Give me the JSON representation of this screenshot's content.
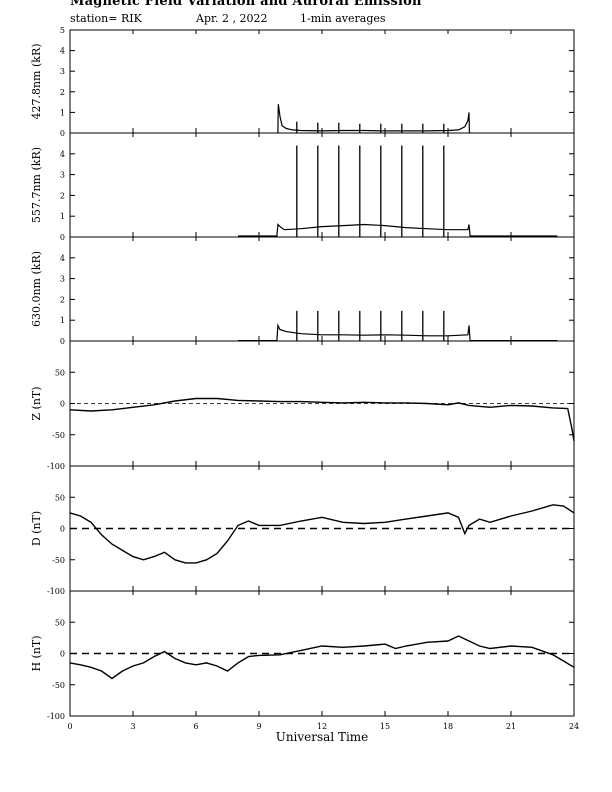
{
  "header": {
    "title": "Magnetic Field Variation and Auroral Emission",
    "station": "station= RIK",
    "date": "Apr. 2  , 2022",
    "averaging": "1-min averages"
  },
  "chart_data": [
    {
      "type": "line",
      "ylabel": "427.8nm (kR)",
      "ylim": [
        0,
        5
      ],
      "yticks": [
        0,
        1,
        2,
        3,
        4,
        5
      ],
      "xlim": [
        0,
        24
      ],
      "series": [
        {
          "values": [
            [
              9.9,
              0
            ],
            [
              9.92,
              1.4
            ],
            [
              10.0,
              0.8
            ],
            [
              10.1,
              0.35
            ],
            [
              10.3,
              0.22
            ],
            [
              10.6,
              0.15
            ],
            [
              11,
              0.12
            ],
            [
              12,
              0.1
            ],
            [
              13,
              0.12
            ],
            [
              14,
              0.12
            ],
            [
              15,
              0.1
            ],
            [
              16,
              0.1
            ],
            [
              17,
              0.1
            ],
            [
              18,
              0.12
            ],
            [
              18.5,
              0.15
            ],
            [
              18.8,
              0.3
            ],
            [
              18.95,
              0.6
            ],
            [
              19.0,
              1.0
            ],
            [
              19.02,
              0
            ]
          ]
        }
      ],
      "spikes": [
        [
          10.8,
          0.55
        ],
        [
          11.8,
          0.5
        ],
        [
          12.8,
          0.5
        ],
        [
          13.8,
          0.45
        ],
        [
          14.8,
          0.45
        ],
        [
          15.8,
          0.45
        ],
        [
          16.8,
          0.45
        ],
        [
          17.8,
          0.45
        ]
      ]
    },
    {
      "type": "line",
      "ylabel": "557.7nm (kR)",
      "ylim": [
        0,
        5
      ],
      "yticks": [
        0,
        1,
        2,
        3,
        4
      ],
      "xlim": [
        0,
        24
      ],
      "series": [
        {
          "values": [
            [
              8.0,
              0.05
            ],
            [
              9.85,
              0.05
            ],
            [
              9.9,
              0.6
            ],
            [
              10.0,
              0.5
            ],
            [
              10.2,
              0.35
            ],
            [
              11,
              0.4
            ],
            [
              12,
              0.5
            ],
            [
              13,
              0.55
            ],
            [
              14,
              0.6
            ],
            [
              15,
              0.55
            ],
            [
              16,
              0.45
            ],
            [
              17,
              0.4
            ],
            [
              18,
              0.35
            ],
            [
              18.95,
              0.35
            ],
            [
              19.0,
              0.6
            ],
            [
              19.05,
              0.05
            ],
            [
              23.2,
              0.05
            ]
          ]
        }
      ],
      "spikes": [
        [
          10.8,
          4.4
        ],
        [
          11.8,
          4.4
        ],
        [
          12.8,
          4.4
        ],
        [
          13.8,
          4.4
        ],
        [
          14.8,
          4.4
        ],
        [
          15.8,
          4.4
        ],
        [
          16.8,
          4.4
        ],
        [
          17.8,
          4.4
        ]
      ]
    },
    {
      "type": "line",
      "ylabel": "630.0nm (kR)",
      "ylim": [
        0,
        5
      ],
      "yticks": [
        0,
        1,
        2,
        3,
        4
      ],
      "xlim": [
        0,
        24
      ],
      "series": [
        {
          "values": [
            [
              8.0,
              0.02
            ],
            [
              9.85,
              0.02
            ],
            [
              9.9,
              0.75
            ],
            [
              10.0,
              0.55
            ],
            [
              10.3,
              0.45
            ],
            [
              11,
              0.35
            ],
            [
              12,
              0.3
            ],
            [
              13,
              0.3
            ],
            [
              14,
              0.28
            ],
            [
              15,
              0.3
            ],
            [
              16,
              0.28
            ],
            [
              17,
              0.25
            ],
            [
              18,
              0.25
            ],
            [
              18.95,
              0.3
            ],
            [
              19.0,
              0.75
            ],
            [
              19.05,
              0.02
            ],
            [
              23.2,
              0.02
            ]
          ]
        }
      ],
      "spikes": [
        [
          10.8,
          1.45
        ],
        [
          11.8,
          1.45
        ],
        [
          12.8,
          1.45
        ],
        [
          13.8,
          1.45
        ],
        [
          14.8,
          1.45
        ],
        [
          15.8,
          1.45
        ],
        [
          16.8,
          1.45
        ],
        [
          17.8,
          1.45
        ]
      ]
    },
    {
      "type": "line",
      "ylabel": "Z (nT)",
      "ylim": [
        -100,
        100
      ],
      "yticks": [
        -100,
        -50,
        0,
        50
      ],
      "xlim": [
        0,
        24
      ],
      "zero_line": true,
      "series": [
        {
          "values": [
            [
              0,
              -10
            ],
            [
              1,
              -12
            ],
            [
              2,
              -10
            ],
            [
              3,
              -6
            ],
            [
              4,
              -2
            ],
            [
              5,
              4
            ],
            [
              6,
              8
            ],
            [
              7,
              8
            ],
            [
              8,
              5
            ],
            [
              9,
              4
            ],
            [
              10,
              3
            ],
            [
              11,
              3
            ],
            [
              12,
              2
            ],
            [
              13,
              1
            ],
            [
              14,
              2
            ],
            [
              15,
              1
            ],
            [
              16,
              1
            ],
            [
              17,
              0
            ],
            [
              18,
              -2
            ],
            [
              18.5,
              1
            ],
            [
              19,
              -3
            ],
            [
              20,
              -6
            ],
            [
              21,
              -3
            ],
            [
              22,
              -4
            ],
            [
              23,
              -7
            ],
            [
              23.7,
              -8
            ],
            [
              23.9,
              -40
            ],
            [
              24,
              -60
            ]
          ]
        }
      ]
    },
    {
      "type": "line",
      "ylabel": "D (nT)",
      "ylim": [
        -100,
        100
      ],
      "yticks": [
        -100,
        -50,
        0,
        50
      ],
      "xlim": [
        0,
        24
      ],
      "zero_line": true,
      "series": [
        {
          "values": [
            [
              0,
              25
            ],
            [
              0.5,
              20
            ],
            [
              1,
              10
            ],
            [
              1.5,
              -10
            ],
            [
              2,
              -25
            ],
            [
              2.5,
              -35
            ],
            [
              3,
              -45
            ],
            [
              3.5,
              -50
            ],
            [
              4,
              -45
            ],
            [
              4.5,
              -38
            ],
            [
              5,
              -50
            ],
            [
              5.5,
              -55
            ],
            [
              6,
              -55
            ],
            [
              6.5,
              -50
            ],
            [
              7,
              -40
            ],
            [
              7.5,
              -20
            ],
            [
              8,
              5
            ],
            [
              8.5,
              12
            ],
            [
              9,
              5
            ],
            [
              10,
              5
            ],
            [
              11,
              12
            ],
            [
              12,
              18
            ],
            [
              13,
              10
            ],
            [
              14,
              8
            ],
            [
              15,
              10
            ],
            [
              16,
              15
            ],
            [
              17,
              20
            ],
            [
              18,
              25
            ],
            [
              18.5,
              18
            ],
            [
              18.8,
              -8
            ],
            [
              19,
              5
            ],
            [
              19.5,
              15
            ],
            [
              20,
              10
            ],
            [
              21,
              20
            ],
            [
              22,
              28
            ],
            [
              23,
              38
            ],
            [
              23.5,
              36
            ],
            [
              24,
              25
            ]
          ]
        }
      ]
    },
    {
      "type": "line",
      "ylabel": "H (nT)",
      "ylim": [
        -100,
        100
      ],
      "yticks": [
        -100,
        -50,
        0,
        50
      ],
      "xlim": [
        0,
        24
      ],
      "zero_line": true,
      "series": [
        {
          "values": [
            [
              0,
              -15
            ],
            [
              0.5,
              -18
            ],
            [
              1,
              -22
            ],
            [
              1.5,
              -28
            ],
            [
              2,
              -40
            ],
            [
              2.5,
              -28
            ],
            [
              3,
              -20
            ],
            [
              3.5,
              -15
            ],
            [
              4,
              -5
            ],
            [
              4.5,
              3
            ],
            [
              5,
              -8
            ],
            [
              5.5,
              -15
            ],
            [
              6,
              -18
            ],
            [
              6.5,
              -15
            ],
            [
              7,
              -20
            ],
            [
              7.5,
              -28
            ],
            [
              8,
              -15
            ],
            [
              8.5,
              -5
            ],
            [
              9,
              -3
            ],
            [
              10,
              -2
            ],
            [
              11,
              5
            ],
            [
              12,
              12
            ],
            [
              13,
              10
            ],
            [
              14,
              12
            ],
            [
              15,
              15
            ],
            [
              15.5,
              8
            ],
            [
              16,
              12
            ],
            [
              17,
              18
            ],
            [
              18,
              20
            ],
            [
              18.5,
              28
            ],
            [
              19,
              20
            ],
            [
              19.5,
              12
            ],
            [
              20,
              8
            ],
            [
              21,
              12
            ],
            [
              22,
              10
            ],
            [
              23,
              -2
            ],
            [
              23.5,
              -12
            ],
            [
              24,
              -22
            ]
          ]
        }
      ]
    }
  ],
  "x_axis": {
    "label": "Universal Time",
    "ticks": [
      "0",
      "3",
      "6",
      "9",
      "12",
      "15",
      "18",
      "21",
      "24"
    ]
  }
}
